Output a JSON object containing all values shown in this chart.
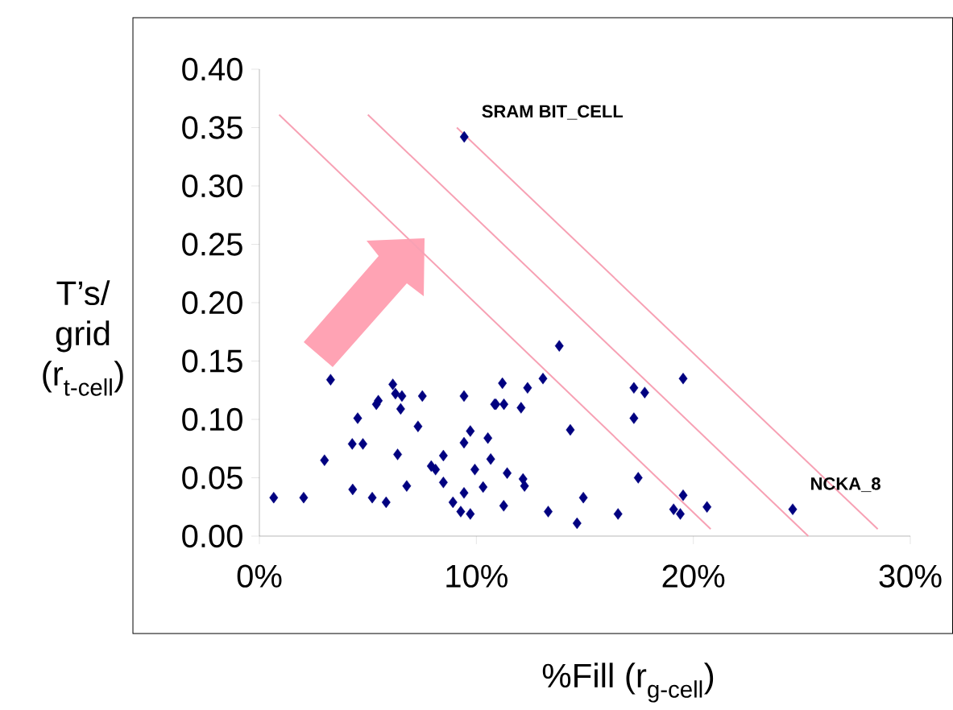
{
  "chart_data": {
    "type": "scatter",
    "xlabel": "%Fill (r$_{g-cell}$)",
    "ylabel": "T’s/ grid (r$_{t-cell}$)",
    "xlim": [
      0,
      30
    ],
    "ylim": [
      0,
      0.4
    ],
    "xticks": [
      {
        "value": 0,
        "label": "0%"
      },
      {
        "value": 10,
        "label": "10%"
      },
      {
        "value": 20,
        "label": "20%"
      },
      {
        "value": 30,
        "label": "30%"
      }
    ],
    "yticks": [
      {
        "value": 0,
        "label": "0.00"
      },
      {
        "value": 0.05,
        "label": "0.05"
      },
      {
        "value": 0.1,
        "label": "0.10"
      },
      {
        "value": 0.15,
        "label": "0.15"
      },
      {
        "value": 0.2,
        "label": "0.20"
      },
      {
        "value": 0.25,
        "label": "0.25"
      },
      {
        "value": 0.3,
        "label": "0.30"
      },
      {
        "value": 0.35,
        "label": "0.35"
      },
      {
        "value": 0.4,
        "label": "0.40"
      }
    ],
    "grid": false,
    "marker": "diamond",
    "series": [
      {
        "color": "#000080",
        "x": [
          3.28,
          6.15,
          6.27,
          6.57,
          7.51,
          9.43,
          5.48,
          5.39,
          6.51,
          10.84,
          4.53,
          7.31,
          9.72,
          9.43,
          10.53,
          4.28,
          4.77,
          6.37,
          8.48,
          3.0,
          7.92,
          8.12,
          10.66,
          9.93,
          6.79,
          8.48,
          4.3,
          9.43,
          10.31,
          0.66,
          2.04,
          5.2,
          5.84,
          8.92,
          9.28,
          9.72,
          13.82,
          11.2,
          13.07,
          12.36,
          17.26,
          17.76,
          19.53,
          10.9,
          11.27,
          12.06,
          17.26,
          14.33,
          11.42,
          12.15,
          12.22,
          17.46,
          11.26,
          14.93,
          13.31,
          16.53,
          14.64,
          19.53,
          19.09,
          19.4,
          20.63,
          24.58,
          9.44
        ],
        "values": [
          0.134,
          0.13,
          0.122,
          0.12,
          0.12,
          0.12,
          0.116,
          0.113,
          0.109,
          0.113,
          0.101,
          0.094,
          0.09,
          0.08,
          0.084,
          0.079,
          0.079,
          0.07,
          0.069,
          0.065,
          0.06,
          0.057,
          0.066,
          0.057,
          0.043,
          0.046,
          0.04,
          0.037,
          0.042,
          0.033,
          0.033,
          0.033,
          0.029,
          0.029,
          0.021,
          0.019,
          0.163,
          0.131,
          0.135,
          0.127,
          0.127,
          0.123,
          0.135,
          0.113,
          0.113,
          0.11,
          0.101,
          0.091,
          0.054,
          0.049,
          0.043,
          0.05,
          0.026,
          0.033,
          0.021,
          0.019,
          0.011,
          0.035,
          0.023,
          0.019,
          0.025,
          0.023,
          0.342
        ]
      },
      {
        "type": "line",
        "color": "#f7a1b4",
        "marker": "none",
        "x": [
          0.91,
          20.8
        ],
        "values": [
          0.361,
          0.006
        ]
      },
      {
        "type": "line",
        "color": "#f7a1b4",
        "marker": "none",
        "x": [
          5.0,
          25.3
        ],
        "values": [
          0.361,
          0.0
        ]
      },
      {
        "type": "line",
        "color": "#f7a1b4",
        "marker": "none",
        "x": [
          9.1,
          28.5
        ],
        "values": [
          0.35,
          0.006
        ]
      }
    ],
    "annotations": [
      {
        "text": "SRAM BIT_CELL",
        "x": 9.44,
        "y": 0.342
      },
      {
        "text": "NCKA_8",
        "x": 24.58,
        "y": 0.023
      }
    ]
  }
}
